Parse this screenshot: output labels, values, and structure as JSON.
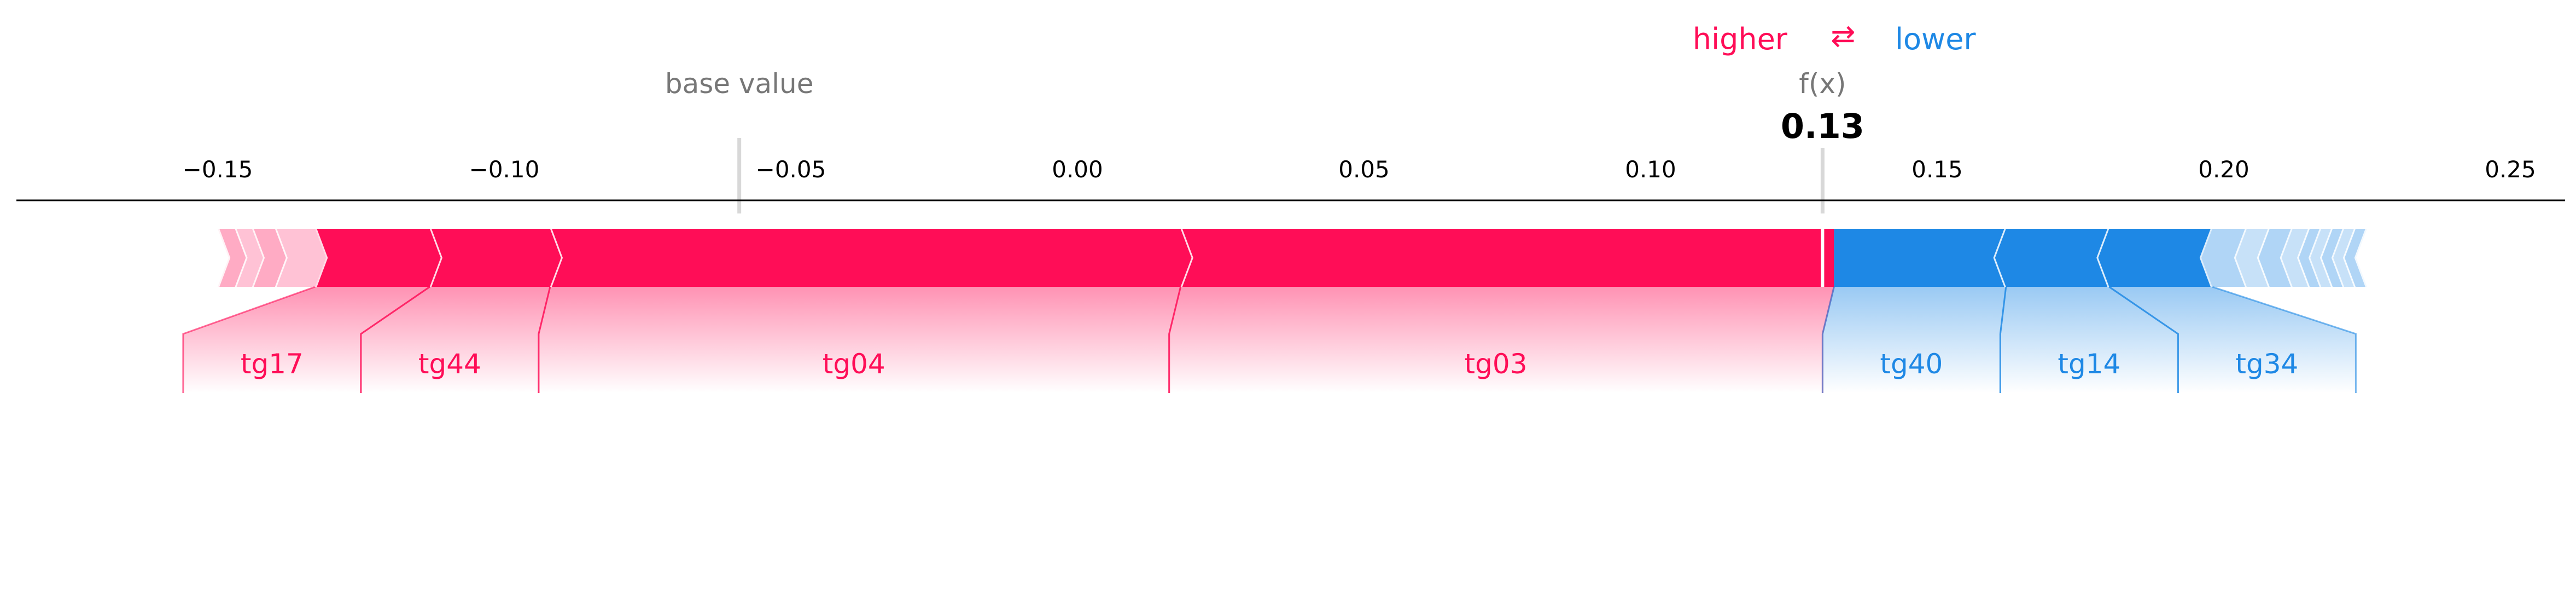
{
  "legend": {
    "higher_label": "higher",
    "arrows_glyph": "⇄",
    "lower_label": "lower",
    "higher_color": "#ff0d57",
    "lower_color": "#1e88e5"
  },
  "chart_data": {
    "type": "force",
    "base_value": -0.059,
    "base_value_label": "base value",
    "output_value": 0.13,
    "output_label": "f(x)",
    "output_text": "0.13",
    "xlim": [
      -0.185,
      0.26
    ],
    "ticks": [
      {
        "value": -0.15,
        "label": "−0.15"
      },
      {
        "value": -0.1,
        "label": "−0.10"
      },
      {
        "value": -0.05,
        "label": "−0.05"
      },
      {
        "value": 0.0,
        "label": "0.00"
      },
      {
        "value": 0.05,
        "label": "0.05"
      },
      {
        "value": 0.1,
        "label": "0.10"
      },
      {
        "value": 0.15,
        "label": "0.15"
      },
      {
        "value": 0.2,
        "label": "0.20"
      },
      {
        "value": 0.25,
        "label": "0.25"
      }
    ],
    "positive_features": [
      {
        "name": "tg03",
        "from": 0.018,
        "to": 0.132
      },
      {
        "name": "tg04",
        "from": -0.092,
        "to": 0.018
      },
      {
        "name": "tg44",
        "from": -0.113,
        "to": -0.092
      },
      {
        "name": "tg17",
        "from": -0.133,
        "to": -0.113
      },
      {
        "name": "",
        "from": -0.14,
        "to": -0.133
      },
      {
        "name": "",
        "from": -0.144,
        "to": -0.14
      },
      {
        "name": "",
        "from": -0.147,
        "to": -0.144
      },
      {
        "name": "",
        "from": -0.15,
        "to": -0.147
      }
    ],
    "negative_features": [
      {
        "name": "tg40",
        "from": 0.132,
        "to": 0.162
      },
      {
        "name": "tg14",
        "from": 0.162,
        "to": 0.18
      },
      {
        "name": "tg34",
        "from": 0.18,
        "to": 0.198
      },
      {
        "name": "",
        "from": 0.198,
        "to": 0.204
      },
      {
        "name": "",
        "from": 0.204,
        "to": 0.208
      },
      {
        "name": "",
        "from": 0.208,
        "to": 0.212
      },
      {
        "name": "",
        "from": 0.212,
        "to": 0.215
      },
      {
        "name": "",
        "from": 0.215,
        "to": 0.217
      },
      {
        "name": "",
        "from": 0.217,
        "to": 0.219
      },
      {
        "name": "",
        "from": 0.219,
        "to": 0.221
      },
      {
        "name": "",
        "from": 0.221,
        "to": 0.223
      },
      {
        "name": "",
        "from": 0.223,
        "to": 0.225
      }
    ]
  }
}
